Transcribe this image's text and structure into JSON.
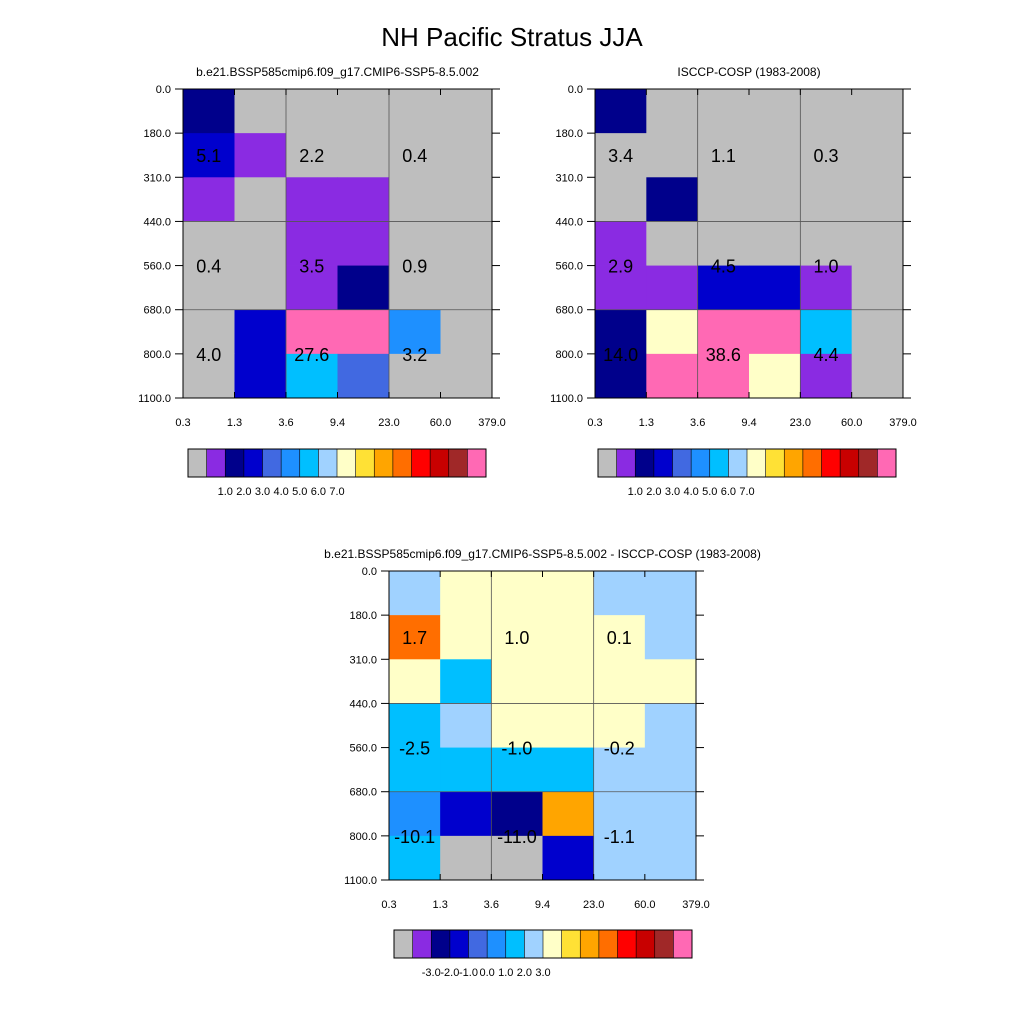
{
  "title": "NH Pacific Stratus JJA",
  "chart_data": [
    {
      "type": "heatmap",
      "title": "b.e21.BSSP585cmip6.f09_g17.CMIP6-SSP5-8.5.002",
      "x_ticks": [
        "0.3",
        "1.3",
        "3.6",
        "9.4",
        "23.0",
        "60.0",
        "379.0"
      ],
      "y_ticks": [
        "0.0",
        "180.0",
        "310.0",
        "440.0",
        "560.0",
        "680.0",
        "800.0",
        "1100.0"
      ],
      "cells": [
        [
          "#00008B",
          "#BEBEBE",
          "#BEBEBE",
          "#BEBEBE",
          "#BEBEBE",
          "#BEBEBE"
        ],
        [
          "#0000CD",
          "#8A2BE2",
          "#BEBEBE",
          "#BEBEBE",
          "#BEBEBE",
          "#BEBEBE"
        ],
        [
          "#8A2BE2",
          "#BEBEBE",
          "#8A2BE2",
          "#8A2BE2",
          "#BEBEBE",
          "#BEBEBE"
        ],
        [
          "#BEBEBE",
          "#BEBEBE",
          "#8A2BE2",
          "#8A2BE2",
          "#BEBEBE",
          "#BEBEBE"
        ],
        [
          "#BEBEBE",
          "#BEBEBE",
          "#8A2BE2",
          "#00008B",
          "#BEBEBE",
          "#BEBEBE"
        ],
        [
          "#BEBEBE",
          "#0000CD",
          "#FF69B4",
          "#FF69B4",
          "#1E90FF",
          "#BEBEBE"
        ],
        [
          "#BEBEBE",
          "#0000CD",
          "#00BFFF",
          "#4169E1",
          "#BEBEBE",
          "#BEBEBE"
        ]
      ],
      "labels": [
        {
          "text": "5.1",
          "col": 0.5,
          "row": 1.5
        },
        {
          "text": "2.2",
          "col": 2.5,
          "row": 1.5
        },
        {
          "text": "0.4",
          "col": 4.5,
          "row": 1.5
        },
        {
          "text": "0.4",
          "col": 0.5,
          "row": 4.0
        },
        {
          "text": "3.5",
          "col": 2.5,
          "row": 4.0
        },
        {
          "text": "0.9",
          "col": 4.5,
          "row": 4.0
        },
        {
          "text": "4.0",
          "col": 0.5,
          "row": 6.0
        },
        {
          "text": "27.6",
          "col": 2.5,
          "row": 6.0
        },
        {
          "text": "3.2",
          "col": 4.5,
          "row": 6.0
        }
      ],
      "colorbar": {
        "colors": [
          "#BEBEBE",
          "#8A2BE2",
          "#00008B",
          "#0000CD",
          "#4169E1",
          "#1E90FF",
          "#00BFFF",
          "#A0D2FF",
          "#FFFFC8",
          "#FFE135",
          "#FFA500",
          "#FF6E00",
          "#FF0000",
          "#C80000",
          "#A02828",
          "#FF69B4"
        ],
        "labels": [
          "1.0",
          "2.0",
          "3.0",
          "4.0",
          "5.0",
          "6.0",
          "7.0"
        ],
        "label_start": 2
      }
    },
    {
      "type": "heatmap",
      "title": "ISCCP-COSP (1983-2008)",
      "x_ticks": [
        "0.3",
        "1.3",
        "3.6",
        "9.4",
        "23.0",
        "60.0",
        "379.0"
      ],
      "y_ticks": [
        "0.0",
        "180.0",
        "310.0",
        "440.0",
        "560.0",
        "680.0",
        "800.0",
        "1100.0"
      ],
      "cells": [
        [
          "#00008B",
          "#BEBEBE",
          "#BEBEBE",
          "#BEBEBE",
          "#BEBEBE",
          "#BEBEBE"
        ],
        [
          "#BEBEBE",
          "#BEBEBE",
          "#BEBEBE",
          "#BEBEBE",
          "#BEBEBE",
          "#BEBEBE"
        ],
        [
          "#BEBEBE",
          "#00008B",
          "#BEBEBE",
          "#BEBEBE",
          "#BEBEBE",
          "#BEBEBE"
        ],
        [
          "#8A2BE2",
          "#BEBEBE",
          "#BEBEBE",
          "#BEBEBE",
          "#BEBEBE",
          "#BEBEBE"
        ],
        [
          "#8A2BE2",
          "#8A2BE2",
          "#0000CD",
          "#0000CD",
          "#8A2BE2",
          "#BEBEBE"
        ],
        [
          "#00008B",
          "#FFFFC8",
          "#FF69B4",
          "#FF69B4",
          "#00BFFF",
          "#BEBEBE"
        ],
        [
          "#00008B",
          "#FF69B4",
          "#FF69B4",
          "#FFFFC8",
          "#8A2BE2",
          "#BEBEBE"
        ]
      ],
      "labels": [
        {
          "text": "3.4",
          "col": 0.5,
          "row": 1.5
        },
        {
          "text": "1.1",
          "col": 2.5,
          "row": 1.5
        },
        {
          "text": "0.3",
          "col": 4.5,
          "row": 1.5
        },
        {
          "text": "2.9",
          "col": 0.5,
          "row": 4.0
        },
        {
          "text": "4.5",
          "col": 2.5,
          "row": 4.0
        },
        {
          "text": "1.0",
          "col": 4.5,
          "row": 4.0
        },
        {
          "text": "14.0",
          "col": 0.5,
          "row": 6.0
        },
        {
          "text": "38.6",
          "col": 2.5,
          "row": 6.0
        },
        {
          "text": "4.4",
          "col": 4.5,
          "row": 6.0
        }
      ],
      "colorbar": {
        "colors": [
          "#BEBEBE",
          "#8A2BE2",
          "#00008B",
          "#0000CD",
          "#4169E1",
          "#1E90FF",
          "#00BFFF",
          "#A0D2FF",
          "#FFFFC8",
          "#FFE135",
          "#FFA500",
          "#FF6E00",
          "#FF0000",
          "#C80000",
          "#A02828",
          "#FF69B4"
        ],
        "labels": [
          "1.0",
          "2.0",
          "3.0",
          "4.0",
          "5.0",
          "6.0",
          "7.0"
        ],
        "label_start": 2
      }
    },
    {
      "type": "heatmap",
      "title": "b.e21.BSSP585cmip6.f09_g17.CMIP6-SSP5-8.5.002 - ISCCP-COSP (1983-2008)",
      "x_ticks": [
        "0.3",
        "1.3",
        "3.6",
        "9.4",
        "23.0",
        "60.0",
        "379.0"
      ],
      "y_ticks": [
        "0.0",
        "180.0",
        "310.0",
        "440.0",
        "560.0",
        "680.0",
        "800.0",
        "1100.0"
      ],
      "cells": [
        [
          "#A0D2FF",
          "#FFFFC8",
          "#FFFFC8",
          "#FFFFC8",
          "#A0D2FF",
          "#A0D2FF"
        ],
        [
          "#FF6E00",
          "#FFFFC8",
          "#FFFFC8",
          "#FFFFC8",
          "#FFFFC8",
          "#A0D2FF"
        ],
        [
          "#FFFFC8",
          "#00BFFF",
          "#FFFFC8",
          "#FFFFC8",
          "#FFFFC8",
          "#FFFFC8"
        ],
        [
          "#00BFFF",
          "#A0D2FF",
          "#FFFFC8",
          "#FFFFC8",
          "#FFFFC8",
          "#A0D2FF"
        ],
        [
          "#00BFFF",
          "#00BFFF",
          "#00BFFF",
          "#00BFFF",
          "#A0D2FF",
          "#A0D2FF"
        ],
        [
          "#1E90FF",
          "#0000CD",
          "#00008B",
          "#FFA500",
          "#A0D2FF",
          "#A0D2FF"
        ],
        [
          "#00BFFF",
          "#BEBEBE",
          "#BEBEBE",
          "#0000CD",
          "#A0D2FF",
          "#A0D2FF"
        ]
      ],
      "labels": [
        {
          "text": "1.7",
          "col": 0.5,
          "row": 1.5
        },
        {
          "text": "1.0",
          "col": 2.5,
          "row": 1.5
        },
        {
          "text": "0.1",
          "col": 4.5,
          "row": 1.5
        },
        {
          "text": "-2.5",
          "col": 0.5,
          "row": 4.0
        },
        {
          "text": "-1.0",
          "col": 2.5,
          "row": 4.0
        },
        {
          "text": "-0.2",
          "col": 4.5,
          "row": 4.0
        },
        {
          "text": "-10.1",
          "col": 0.5,
          "row": 6.0
        },
        {
          "text": "-11.0",
          "col": 2.5,
          "row": 6.0
        },
        {
          "text": "-1.1",
          "col": 4.5,
          "row": 6.0
        }
      ],
      "colorbar": {
        "colors": [
          "#BEBEBE",
          "#8A2BE2",
          "#00008B",
          "#0000CD",
          "#4169E1",
          "#1E90FF",
          "#00BFFF",
          "#A0D2FF",
          "#FFFFC8",
          "#FFE135",
          "#FFA500",
          "#FF6E00",
          "#FF0000",
          "#C80000",
          "#A02828",
          "#FF69B4"
        ],
        "labels": [
          "-3.0",
          "-2.0",
          "-1.0",
          "0.0",
          "1.0",
          "2.0",
          "3.0"
        ],
        "label_start": 2
      }
    }
  ]
}
